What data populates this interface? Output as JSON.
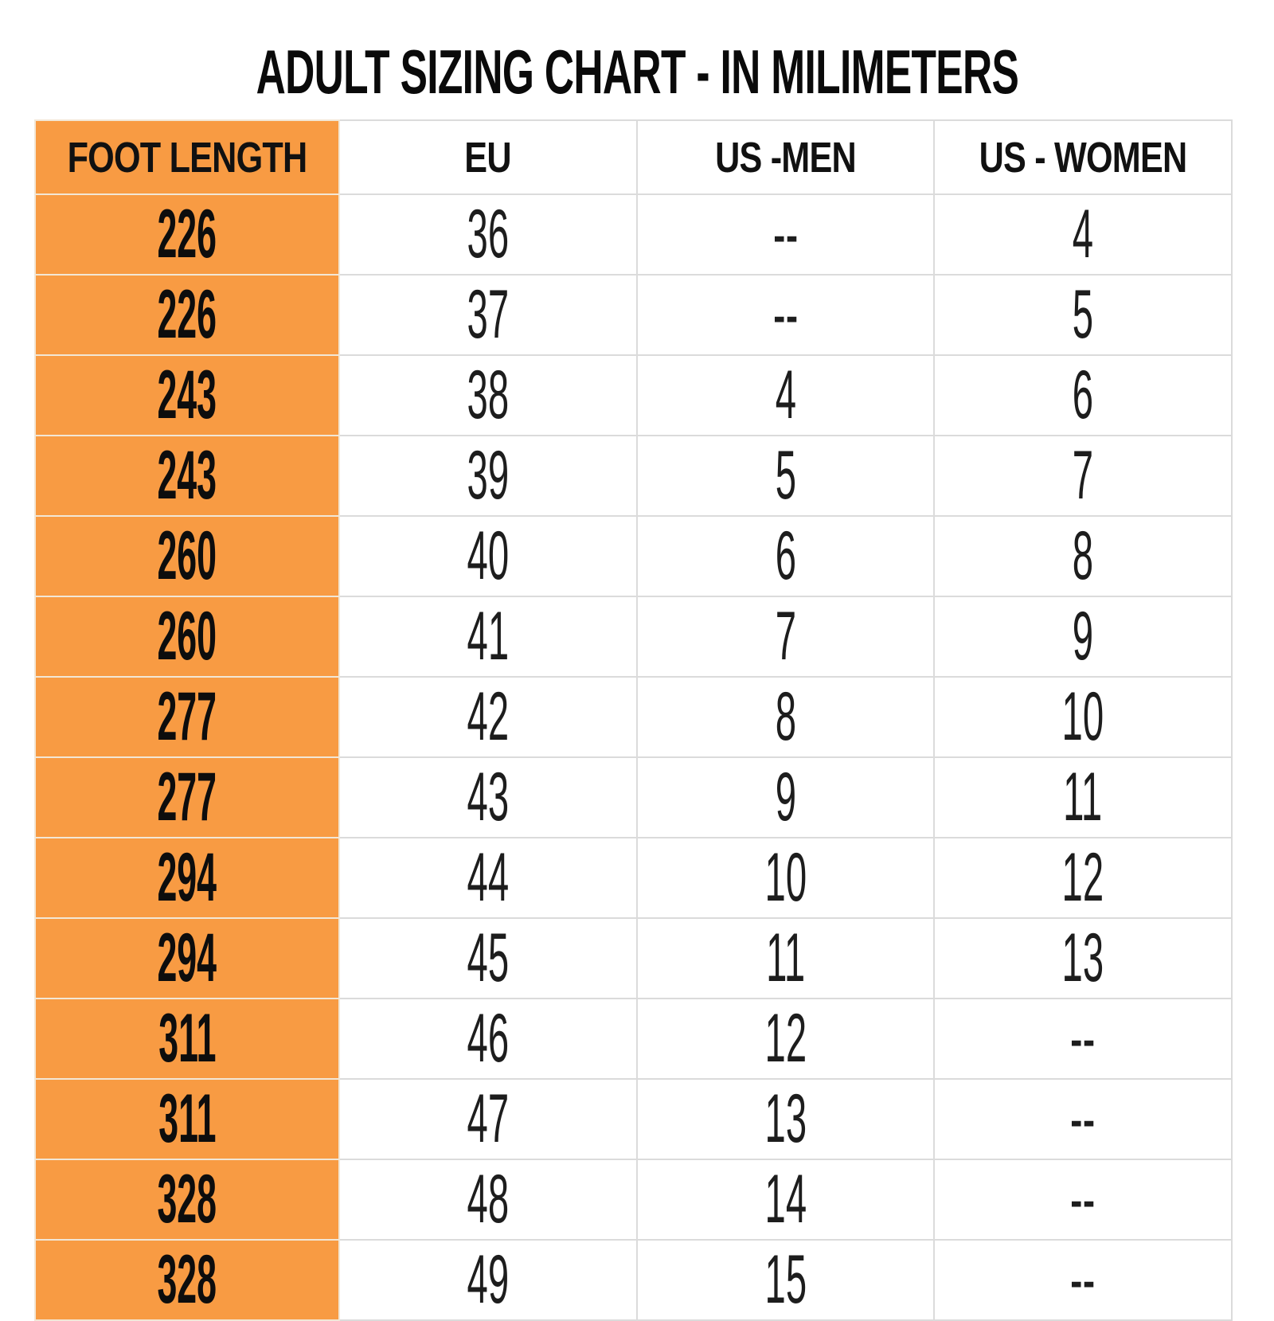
{
  "page": {
    "title": "ADULT SIZING CHART - IN MILIMETERS"
  },
  "colors": {
    "accent_orange": "#F89B43",
    "grid_line": "#DBDBDB",
    "orange_divider": "#F2E7D6",
    "title_text": "#0A0A0A",
    "cell_text": "#1D1D1D"
  },
  "chart_data": {
    "type": "table",
    "title": "ADULT SIZING CHART - IN MILIMETERS",
    "columns": [
      "FOOT LENGTH",
      "EU",
      "US -MEN",
      "US - WOMEN"
    ],
    "empty_marker": "--",
    "rows": [
      [
        "226",
        "36",
        "--",
        "4"
      ],
      [
        "226",
        "37",
        "--",
        "5"
      ],
      [
        "243",
        "38",
        "4",
        "6"
      ],
      [
        "243",
        "39",
        "5",
        "7"
      ],
      [
        "260",
        "40",
        "6",
        "8"
      ],
      [
        "260",
        "41",
        "7",
        "9"
      ],
      [
        "277",
        "42",
        "8",
        "10"
      ],
      [
        "277",
        "43",
        "9",
        "11"
      ],
      [
        "294",
        "44",
        "10",
        "12"
      ],
      [
        "294",
        "45",
        "11",
        "13"
      ],
      [
        "311",
        "46",
        "12",
        "--"
      ],
      [
        "311",
        "47",
        "13",
        "--"
      ],
      [
        "328",
        "48",
        "14",
        "--"
      ],
      [
        "328",
        "49",
        "15",
        "--"
      ]
    ]
  }
}
